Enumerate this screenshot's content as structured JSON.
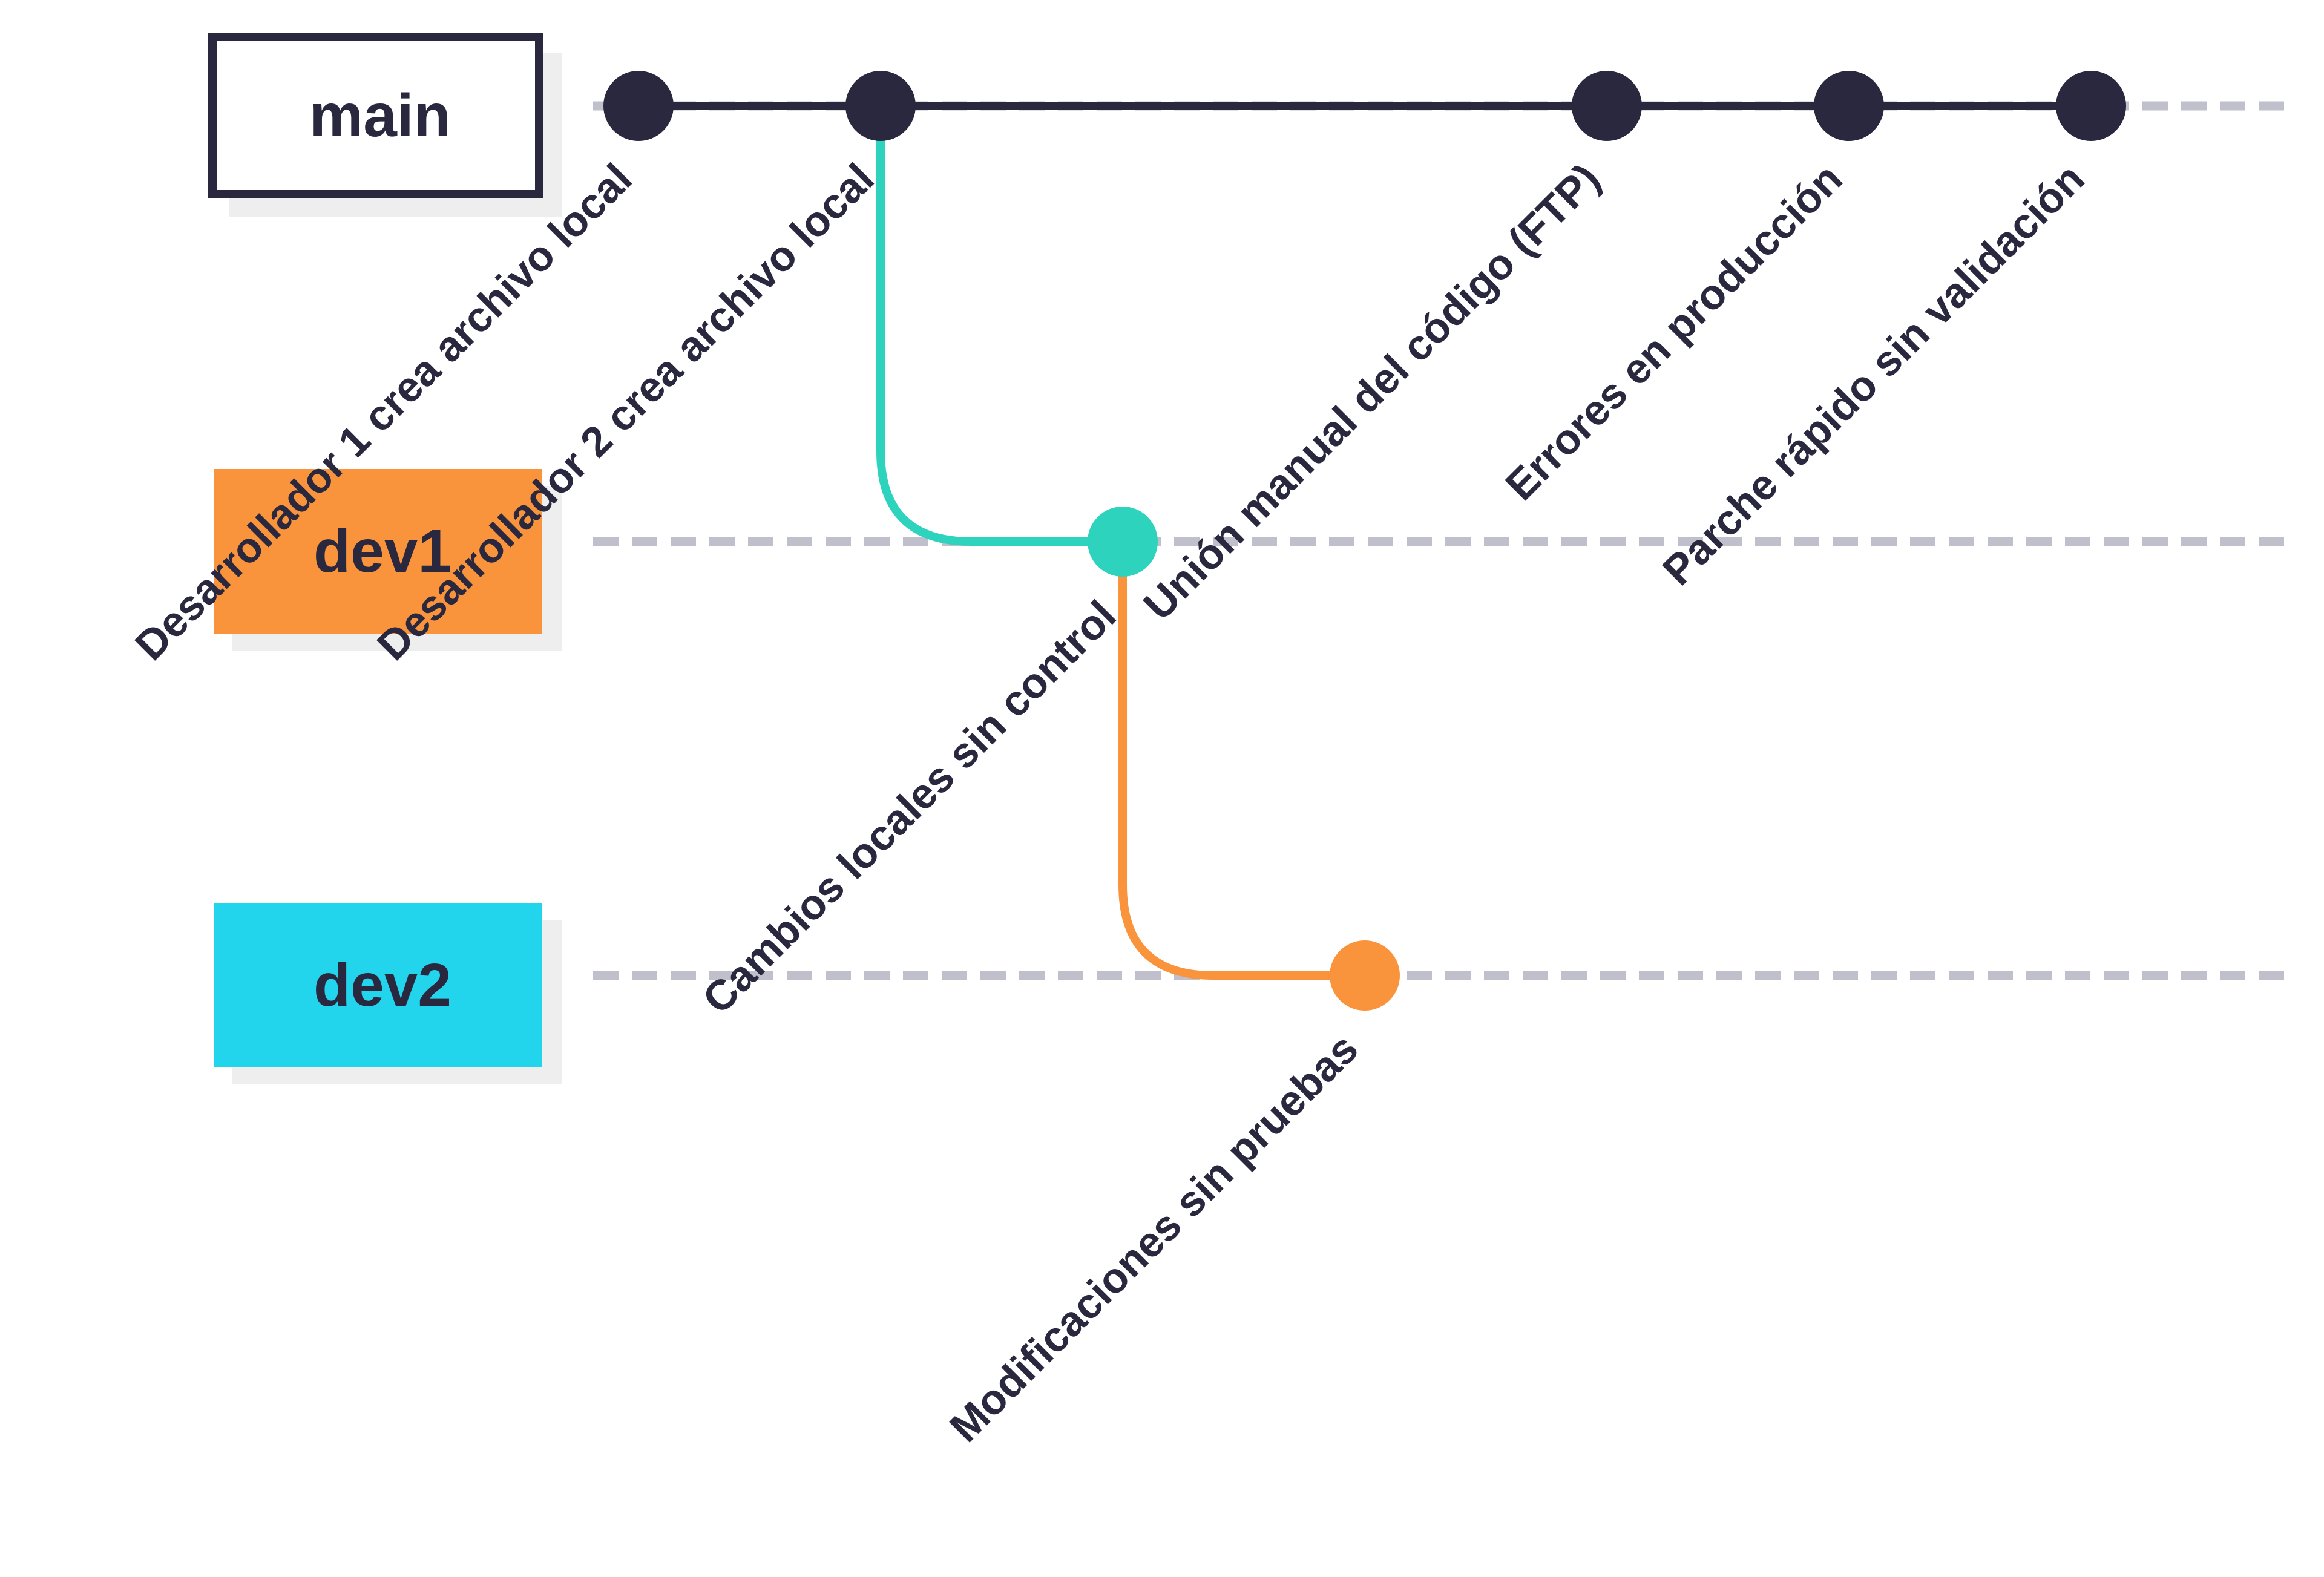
{
  "colors": {
    "ink": "#29283f",
    "dashed": "#c0bfcc",
    "shadow": "#eeeeee",
    "dev1": "#f9943c",
    "dev2": "#22d4ec",
    "merge_teal": "#2dd3bd",
    "branch_orange": "#f9943c"
  },
  "branches": [
    {
      "id": "main",
      "label": "main",
      "style": "outline",
      "fill": "#ffffff"
    },
    {
      "id": "dev1",
      "label": "dev1",
      "style": "filled",
      "fill": "#f9943c"
    },
    {
      "id": "dev2",
      "label": "dev2",
      "style": "filled",
      "fill": "#22d4ec"
    }
  ],
  "commits": [
    {
      "id": "c1",
      "branch": "main",
      "color": "#29283f",
      "label": "Desarrollador 1 crea archivo local"
    },
    {
      "id": "c2",
      "branch": "main",
      "color": "#29283f",
      "label": "Desarrollador 2 crea archivo local"
    },
    {
      "id": "c3",
      "branch": "dev1",
      "color": "#2dd3bd",
      "label": "Cambios locales sin control"
    },
    {
      "id": "c4",
      "branch": "dev2",
      "color": "#f9943c",
      "label": "Modificaciones sin pruebas"
    },
    {
      "id": "c5",
      "branch": "main",
      "color": "#29283f",
      "label": "Unión manual del código (FTP)"
    },
    {
      "id": "c6",
      "branch": "main",
      "color": "#29283f",
      "label": "Errores en producción"
    },
    {
      "id": "c7",
      "branch": "main",
      "color": "#29283f",
      "label": "Parche rápido sin validación"
    }
  ],
  "connections": [
    {
      "from": "c2",
      "to": "c3",
      "color": "#2dd3bd"
    },
    {
      "from": "c3",
      "to": "c4",
      "color": "#f9943c"
    }
  ]
}
